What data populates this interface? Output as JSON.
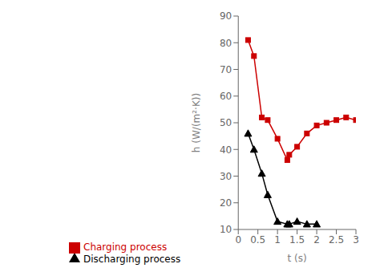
{
  "chart_data": {
    "type": "line",
    "xlabel": "t (s)",
    "ylabel": "h (W/(m²·K))",
    "series": [
      {
        "name": "Charging process",
        "color": "#cc0000",
        "marker": "square",
        "x": [
          0.25,
          0.4,
          0.6,
          0.75,
          1.0,
          1.25,
          1.3,
          1.5,
          1.75,
          2.0,
          2.25,
          2.5,
          2.75,
          3.0
        ],
        "values": [
          81,
          75,
          52,
          51,
          44,
          36,
          38,
          41,
          46,
          49,
          50,
          51,
          52,
          51
        ]
      },
      {
        "name": "Discharging process",
        "color": "#000000",
        "marker": "triangle",
        "x": [
          0.25,
          0.4,
          0.6,
          0.75,
          1.0,
          1.25,
          1.3,
          1.5,
          1.75,
          2.0
        ],
        "values": [
          46,
          40,
          31,
          23,
          13,
          12,
          12,
          13,
          12,
          12
        ]
      }
    ],
    "xlim": [
      0,
      3
    ],
    "ylim": [
      10,
      90
    ],
    "xticks": [
      0,
      0.5,
      1,
      1.5,
      2,
      2.5,
      3
    ],
    "yticks": [
      10,
      20,
      30,
      40,
      50,
      60,
      70,
      80,
      90
    ],
    "grid": false,
    "legend": "lower left"
  }
}
